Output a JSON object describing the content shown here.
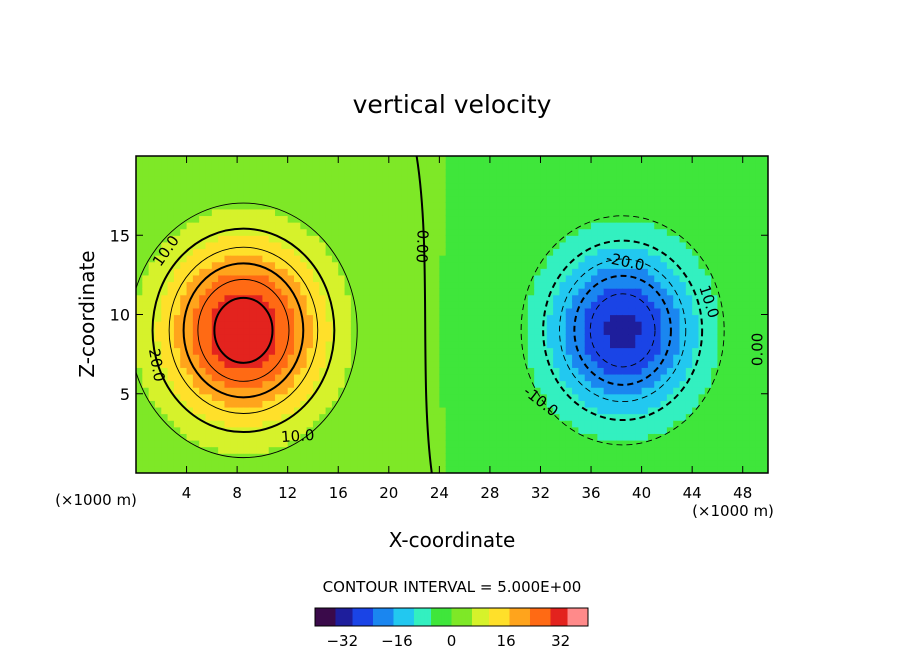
{
  "chart_data": {
    "type": "heatmap",
    "title": "vertical velocity",
    "xlabel": "X-coordinate",
    "ylabel": "Z-coordinate",
    "x_unit_label": "(×1000 m)",
    "z_unit_label": "(×1000 m)",
    "xlim": [
      0,
      50
    ],
    "ylim": [
      0,
      20
    ],
    "x_ticks": [
      4,
      8,
      12,
      16,
      20,
      24,
      28,
      32,
      36,
      40,
      44,
      48
    ],
    "y_ticks": [
      5,
      10,
      15
    ],
    "contour_interval_label": "CONTOUR INTERVAL = 5.000E+00",
    "contour_labels": [
      {
        "text": "10.0",
        "x": 2.4,
        "z": 14.0,
        "rotate": -55
      },
      {
        "text": "20.0",
        "x": 1.6,
        "z": 6.8,
        "rotate": 80
      },
      {
        "text": "10.0",
        "x": 12.8,
        "z": 2.3,
        "rotate": -4
      },
      {
        "text": "0.00",
        "x": 22.6,
        "z": 14.3,
        "rotate": 92
      },
      {
        "text": "-20.0",
        "x": 38.7,
        "z": 13.3,
        "rotate": 12
      },
      {
        "text": "10.0",
        "x": 45.3,
        "z": 10.8,
        "rotate": 72
      },
      {
        "text": "-10.0",
        "x": 32.0,
        "z": 4.5,
        "rotate": 38
      },
      {
        "text": "0.00",
        "x": 49.2,
        "z": 7.8,
        "rotate": -90
      }
    ],
    "fields": [
      {
        "name": "updraft",
        "x0": 8.5,
        "z0": 9.0,
        "sx": 6.5,
        "sz": 5.8,
        "amp": 34
      },
      {
        "name": "downdraft",
        "x0": 38.5,
        "z0": 9.0,
        "sx": 6.0,
        "sz": 5.4,
        "amp": -30
      }
    ],
    "colorbar": {
      "min": -40,
      "max": 40,
      "tick_values": [
        -32,
        -16,
        0,
        16,
        32
      ],
      "tick_labels": [
        "−32",
        "−16",
        "0",
        "16",
        "32"
      ]
    },
    "colormap": [
      "#3a0a4a",
      "#1e1e9c",
      "#1a44e6",
      "#1a86f0",
      "#22c8f0",
      "#33f0c0",
      "#3fe63b",
      "#7ee827",
      "#d6f22b",
      "#ffe02a",
      "#ffa41c",
      "#ff6a14",
      "#e3231e",
      "#ff8a8a"
    ]
  }
}
